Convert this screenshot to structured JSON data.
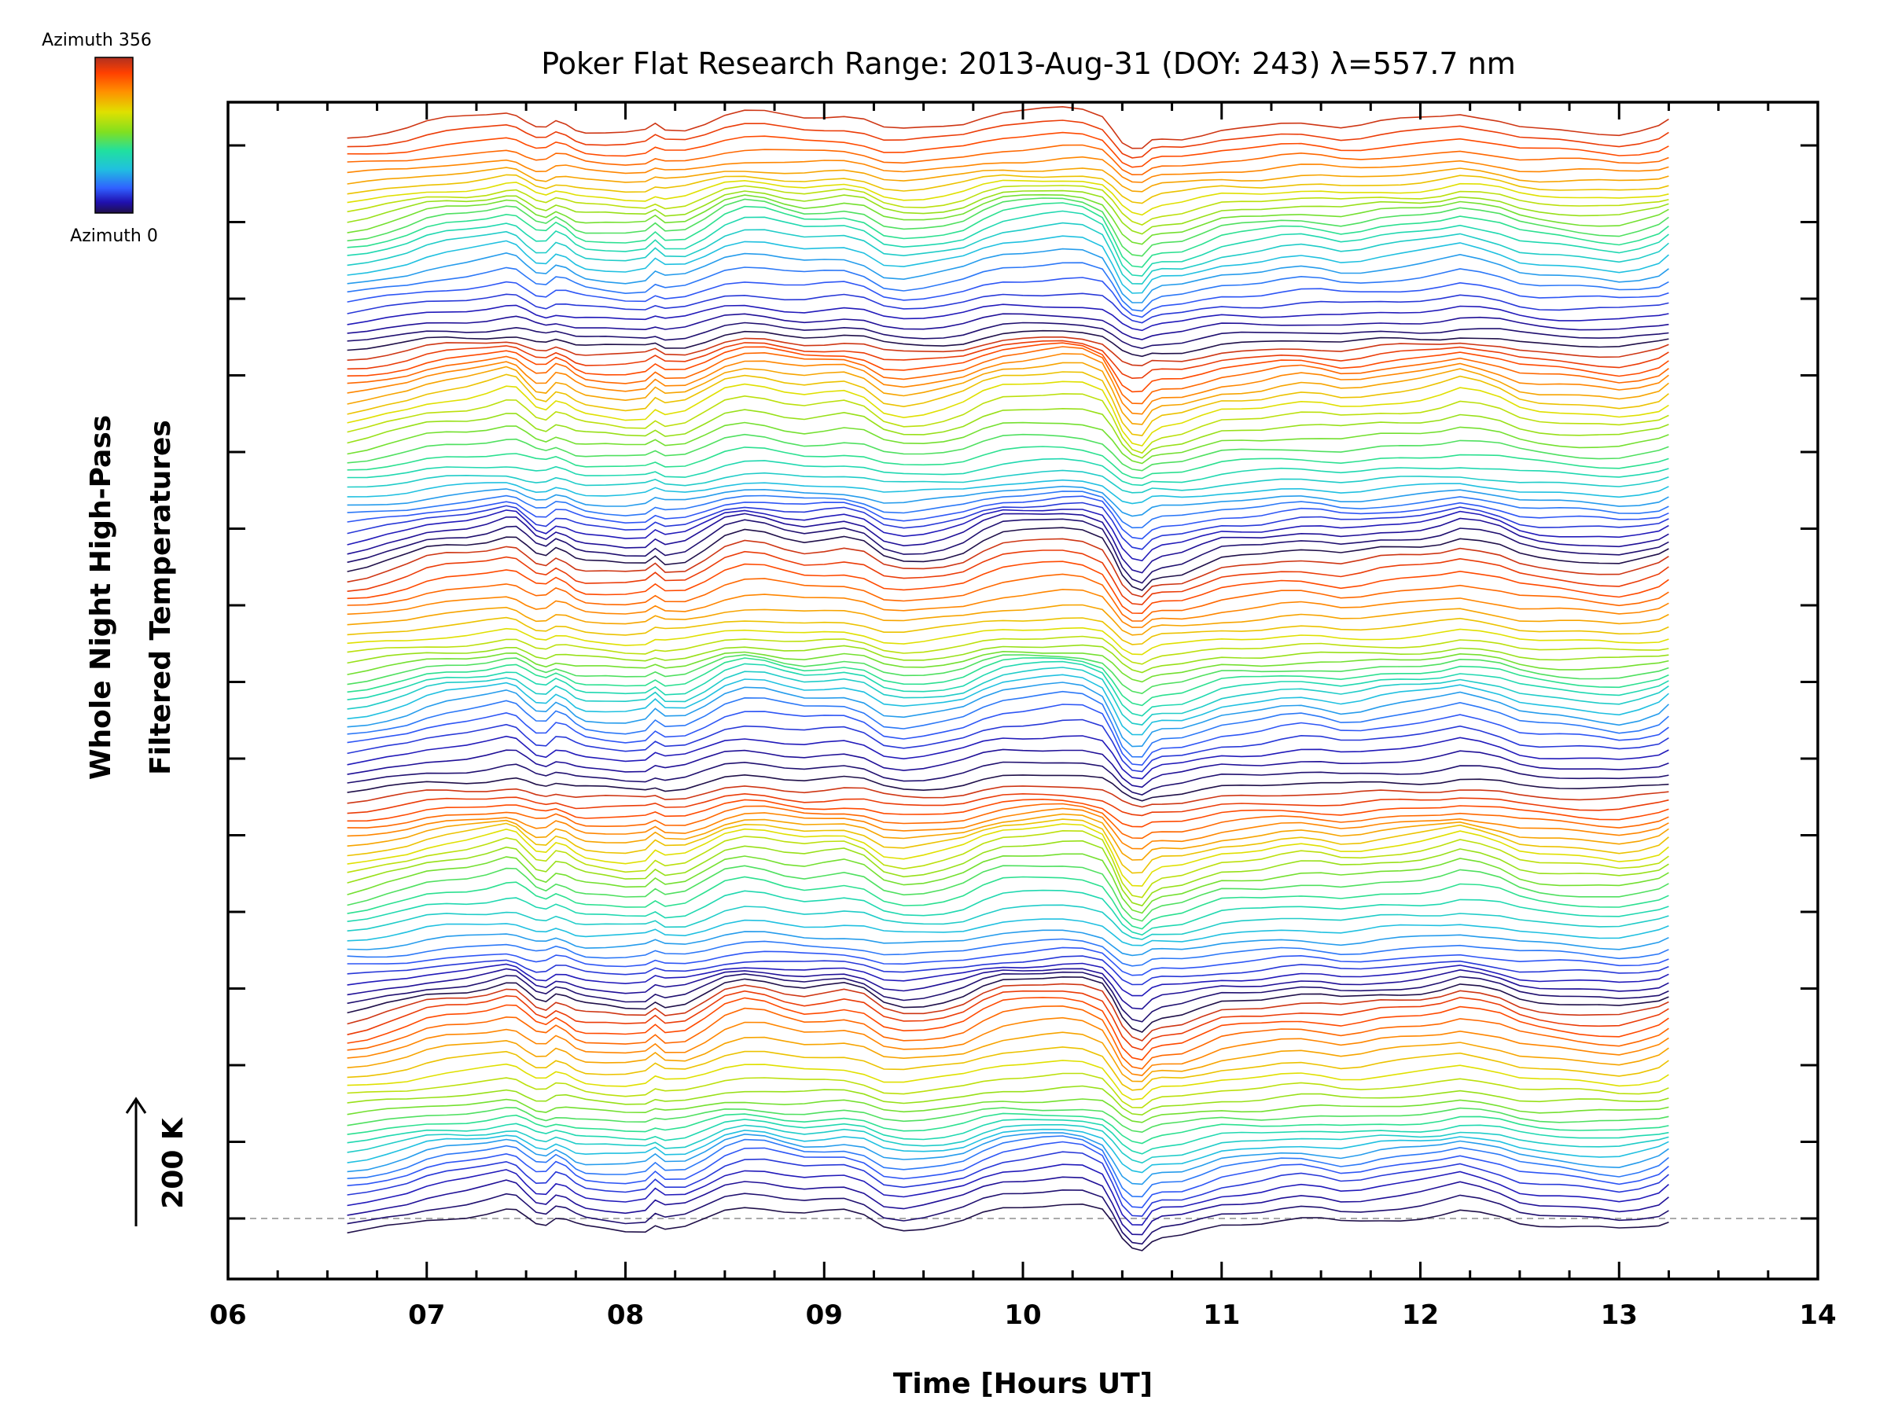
{
  "chart_data": {
    "type": "line",
    "title": "Poker Flat Research Range: 2013-Aug-31 (DOY: 243) λ=557.7 nm",
    "xlabel": "Time [Hours UT]",
    "ylabel_line1": "Whole Night High-Pass",
    "ylabel_line2": "Filtered Temperatures",
    "xlim": [
      6,
      14
    ],
    "x_tick_labels": [
      "06",
      "07",
      "08",
      "09",
      "10",
      "11",
      "12",
      "13",
      "14"
    ],
    "scale_bar_label": "200 K",
    "colorbar": {
      "top_label": "Azimuth 356",
      "bottom_label": "Azimuth 0",
      "colors": [
        "#b03020",
        "#ff4000",
        "#ff9000",
        "#e0e000",
        "#80e020",
        "#20e0a0",
        "#20c0e0",
        "#3060ff",
        "#2010b0",
        "#20104a"
      ]
    },
    "x": [
      6.6,
      6.7,
      6.8,
      6.9,
      7.0,
      7.1,
      7.2,
      7.3,
      7.4,
      7.45,
      7.5,
      7.55,
      7.6,
      7.65,
      7.7,
      7.75,
      7.8,
      7.9,
      8.0,
      8.1,
      8.15,
      8.2,
      8.3,
      8.4,
      8.5,
      8.6,
      8.7,
      8.8,
      8.9,
      9.0,
      9.1,
      9.2,
      9.3,
      9.4,
      9.5,
      9.6,
      9.7,
      9.8,
      9.9,
      10.0,
      10.1,
      10.2,
      10.3,
      10.4,
      10.45,
      10.5,
      10.55,
      10.6,
      10.65,
      10.7,
      10.8,
      10.9,
      11.0,
      11.1,
      11.2,
      11.3,
      11.4,
      11.5,
      11.6,
      11.7,
      11.8,
      11.9,
      12.0,
      12.1,
      12.2,
      12.3,
      12.4,
      12.5,
      12.6,
      12.7,
      12.8,
      12.9,
      13.0,
      13.1,
      13.2,
      13.25
    ],
    "base_profile": [
      0,
      10,
      25,
      40,
      60,
      70,
      75,
      85,
      100,
      95,
      70,
      45,
      40,
      65,
      55,
      35,
      25,
      20,
      15,
      20,
      45,
      25,
      30,
      60,
      95,
      110,
      105,
      90,
      80,
      85,
      90,
      75,
      35,
      25,
      30,
      40,
      55,
      85,
      105,
      110,
      115,
      120,
      115,
      90,
      40,
      -20,
      -50,
      -55,
      -20,
      -10,
      -5,
      15,
      35,
      40,
      45,
      55,
      60,
      55,
      45,
      50,
      60,
      65,
      70,
      80,
      95,
      85,
      70,
      45,
      35,
      30,
      25,
      20,
      15,
      25,
      40,
      60
    ],
    "profile_units": "K",
    "series_count": 120,
    "series_description": "Stacked high-pass filtered temperature traces, one per azimuth from 0 to 356 degrees, offset vertically and colored by azimuth"
  }
}
